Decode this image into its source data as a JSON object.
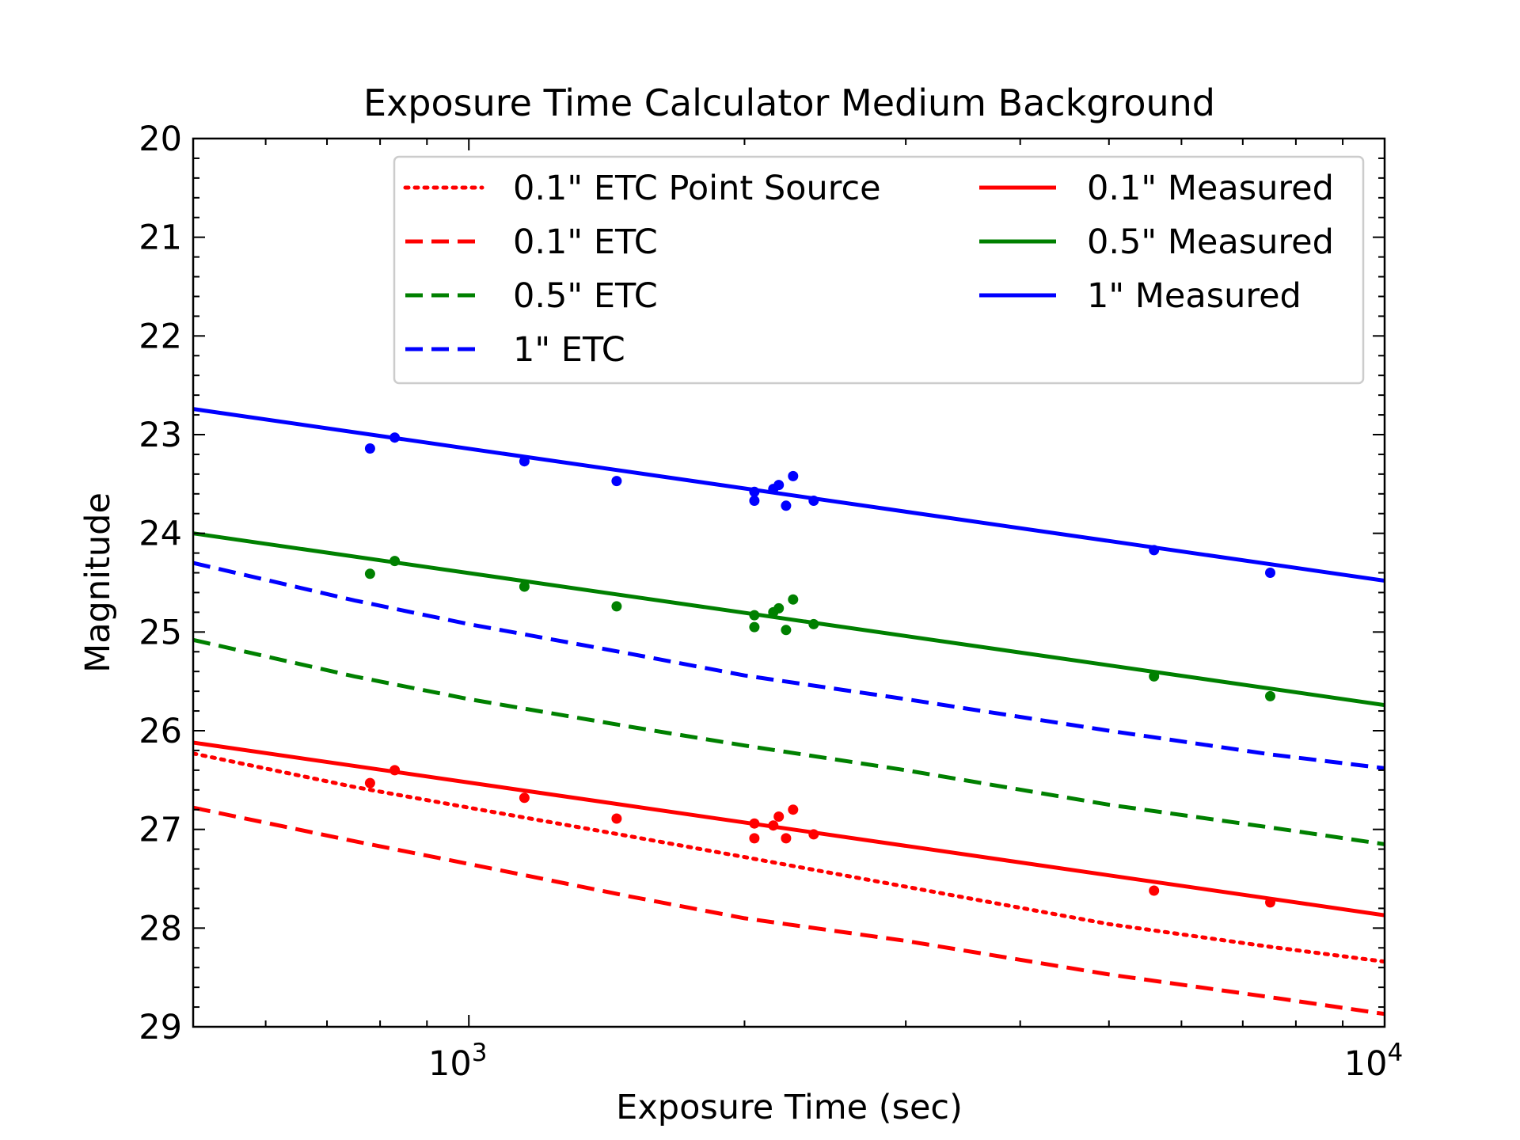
{
  "chart_data": {
    "type": "line",
    "title": "Exposure Time Calculator Medium Background",
    "xlabel": "Exposure Time (sec)",
    "ylabel": "Magnitude",
    "xscale": "log",
    "xlim": [
      500,
      10000
    ],
    "ylim": [
      29,
      20
    ],
    "y_inverted": true,
    "yticks": [
      "20",
      "21",
      "22",
      "23",
      "24",
      "25",
      "26",
      "27",
      "28",
      "29"
    ],
    "xticks": [
      {
        "value": 1000,
        "base": "10",
        "exp": "3"
      },
      {
        "value": 10000,
        "base": "10",
        "exp": "4"
      }
    ],
    "legend_position": "upper-right",
    "series": [
      {
        "name": "0.1\" ETC Point Source",
        "color": "#ff0000",
        "style": "dotted",
        "x": [
          500,
          750,
          1000,
          1500,
          2000,
          3000,
          5000,
          7500,
          10000
        ],
        "y": [
          26.23,
          26.57,
          26.78,
          27.07,
          27.28,
          27.58,
          27.96,
          28.19,
          28.34
        ]
      },
      {
        "name": "0.1\" ETC",
        "color": "#ff0000",
        "style": "dashed",
        "x": [
          500,
          750,
          1000,
          1500,
          2000,
          3000,
          5000,
          7500,
          10000
        ],
        "y": [
          26.78,
          27.12,
          27.35,
          27.68,
          27.9,
          28.13,
          28.47,
          28.7,
          28.87
        ]
      },
      {
        "name": "0.5\" ETC",
        "color": "#008000",
        "style": "dashed",
        "x": [
          500,
          750,
          1000,
          1500,
          2000,
          3000,
          5000,
          7500,
          10000
        ],
        "y": [
          25.08,
          25.45,
          25.68,
          25.96,
          26.15,
          26.4,
          26.75,
          26.98,
          27.15
        ]
      },
      {
        "name": "1\" ETC",
        "color": "#0000ff",
        "style": "dashed",
        "x": [
          500,
          750,
          1000,
          1500,
          2000,
          3000,
          5000,
          7500,
          10000
        ],
        "y": [
          24.3,
          24.68,
          24.92,
          25.22,
          25.44,
          25.68,
          26.0,
          26.24,
          26.38
        ]
      },
      {
        "name": "0.1\" Measured",
        "color": "#ff0000",
        "style": "solid",
        "x": [
          500,
          10000
        ],
        "y": [
          26.12,
          27.87
        ]
      },
      {
        "name": "0.5\" Measured",
        "color": "#008000",
        "style": "solid",
        "x": [
          500,
          10000
        ],
        "y": [
          24.0,
          25.74
        ]
      },
      {
        "name": "1\" Measured",
        "color": "#0000ff",
        "style": "solid",
        "x": [
          500,
          10000
        ],
        "y": [
          22.74,
          24.48
        ]
      }
    ],
    "points": [
      {
        "color": "#0000ff",
        "x": [
          780,
          830,
          1150,
          1450,
          2050,
          2050,
          2150,
          2180,
          2220,
          2260,
          2380,
          5600,
          7500
        ],
        "y": [
          23.14,
          23.03,
          23.27,
          23.47,
          23.58,
          23.67,
          23.55,
          23.51,
          23.72,
          23.42,
          23.67,
          24.17,
          24.4
        ]
      },
      {
        "color": "#008000",
        "x": [
          780,
          830,
          1150,
          1450,
          2050,
          2050,
          2150,
          2180,
          2220,
          2260,
          2380,
          5600,
          7500
        ],
        "y": [
          24.41,
          24.28,
          24.54,
          24.74,
          24.83,
          24.95,
          24.8,
          24.76,
          24.98,
          24.67,
          24.92,
          25.45,
          25.65
        ]
      },
      {
        "color": "#ff0000",
        "x": [
          780,
          830,
          1150,
          1450,
          2050,
          2050,
          2150,
          2180,
          2220,
          2260,
          2380,
          5600,
          7500
        ],
        "y": [
          26.53,
          26.4,
          26.68,
          26.89,
          26.94,
          27.09,
          26.96,
          26.87,
          27.09,
          26.8,
          27.05,
          27.62,
          27.74
        ]
      }
    ]
  }
}
